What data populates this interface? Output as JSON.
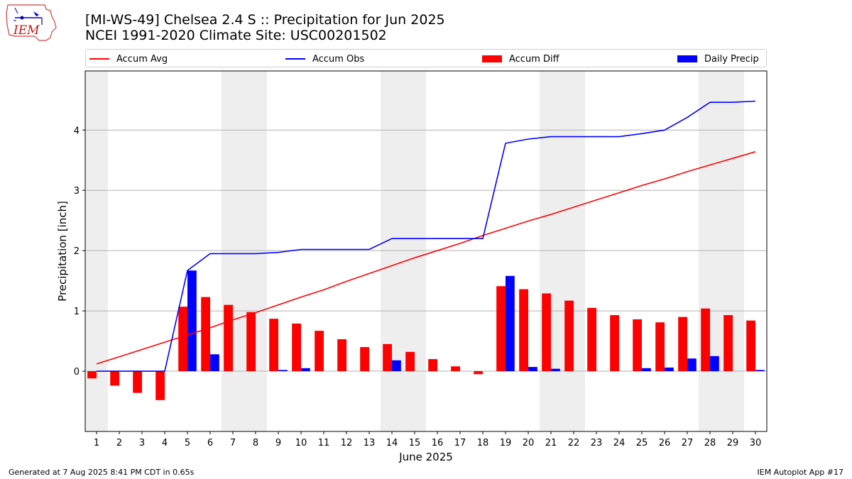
{
  "header": {
    "title": "[MI-WS-49] Chelsea 2.4 S :: Precipitation for Jun 2025",
    "subtitle": "NCEI 1991-2020 Climate Site: USC00201502",
    "logo_text": "IEM"
  },
  "legend": [
    {
      "label": "Accum Avg",
      "kind": "line",
      "color": "#ff0000"
    },
    {
      "label": "Accum Obs",
      "kind": "line",
      "color": "#0000ff"
    },
    {
      "label": "Accum Diff",
      "kind": "bar",
      "color": "#ff0000"
    },
    {
      "label": "Daily Precip",
      "kind": "bar",
      "color": "#0000ff"
    }
  ],
  "footer": {
    "left": "Generated at 7 Aug 2025 8:41 PM CDT in 0.65s",
    "right": "IEM Autoplot App #17"
  },
  "chart_data": {
    "type": "bar",
    "xlabel": "June 2025",
    "ylabel": "Precipitation [inch]",
    "ylim": [
      -1.0,
      4.98
    ],
    "yticks": [
      0,
      1,
      2,
      3,
      4
    ],
    "grid": "y",
    "weekend_shading_days": [
      [
        1,
        1
      ],
      [
        7,
        8
      ],
      [
        14,
        15
      ],
      [
        21,
        22
      ],
      [
        28,
        29
      ]
    ],
    "weekend_color": "#eeeeee",
    "days": [
      1,
      2,
      3,
      4,
      5,
      6,
      7,
      8,
      9,
      10,
      11,
      12,
      13,
      14,
      15,
      16,
      17,
      18,
      19,
      20,
      21,
      22,
      23,
      24,
      25,
      26,
      27,
      28,
      29,
      30
    ],
    "accum_avg": [
      0.12,
      0.24,
      0.36,
      0.48,
      0.6,
      0.72,
      0.85,
      0.97,
      1.1,
      1.23,
      1.35,
      1.49,
      1.62,
      1.75,
      1.88,
      2.0,
      2.12,
      2.25,
      2.37,
      2.49,
      2.6,
      2.72,
      2.84,
      2.96,
      3.08,
      3.19,
      3.31,
      3.42,
      3.53,
      3.64
    ],
    "accum_obs": [
      0.0,
      0.0,
      0.0,
      0.0,
      1.67,
      1.95,
      1.95,
      1.95,
      1.97,
      2.02,
      2.02,
      2.02,
      2.02,
      2.2,
      2.2,
      2.2,
      2.2,
      2.2,
      3.78,
      3.85,
      3.89,
      3.89,
      3.89,
      3.89,
      3.94,
      4.0,
      4.21,
      4.46,
      4.46,
      4.48
    ],
    "accum_diff": [
      -0.12,
      -0.24,
      -0.36,
      -0.48,
      1.07,
      1.23,
      1.1,
      0.98,
      0.87,
      0.79,
      0.67,
      0.53,
      0.4,
      0.45,
      0.32,
      0.2,
      0.08,
      -0.05,
      1.41,
      1.36,
      1.29,
      1.17,
      1.05,
      0.93,
      0.86,
      0.81,
      0.9,
      1.04,
      0.93,
      0.84
    ],
    "daily_precip": [
      0.0,
      0.0,
      0.0,
      0.0,
      1.67,
      0.28,
      0.0,
      0.0,
      0.02,
      0.05,
      0.0,
      0.0,
      0.0,
      0.18,
      0.0,
      0.0,
      0.0,
      0.0,
      1.58,
      0.07,
      0.04,
      0.0,
      0.0,
      0.0,
      0.05,
      0.06,
      0.21,
      0.25,
      0.0,
      0.02
    ],
    "colors": {
      "avg": "#ff0000",
      "obs": "#0000ff",
      "diff": "#ff0000",
      "precip": "#0000ff",
      "grid": "#b0b0b0"
    }
  }
}
